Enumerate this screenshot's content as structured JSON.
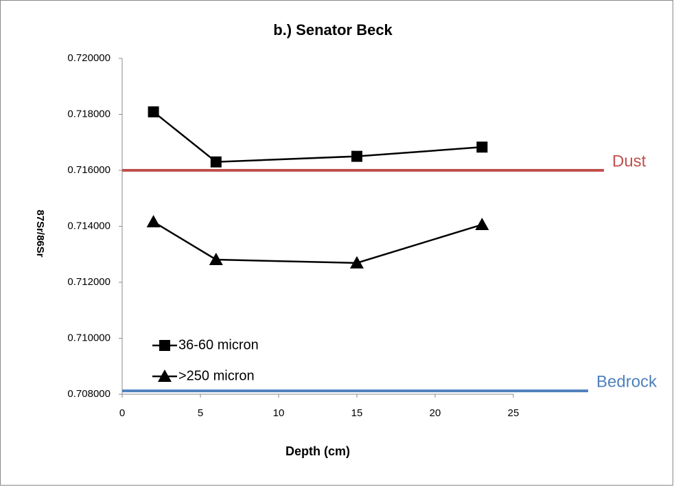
{
  "chart_data": {
    "type": "line",
    "title": "b.) Senator Beck",
    "x_label": "Depth (cm)",
    "y_label": "87Sr/86Sr",
    "xlim": [
      0,
      25
    ],
    "xticks": [
      0,
      5,
      10,
      15,
      20,
      25
    ],
    "ylim": [
      0.708,
      0.72
    ],
    "yticks": [
      {
        "value": 0.708,
        "label": "0.708000"
      },
      {
        "value": 0.71,
        "label": "0.710000"
      },
      {
        "value": 0.712,
        "label": "0.712000"
      },
      {
        "value": 0.714,
        "label": "0.714000"
      },
      {
        "value": 0.716,
        "label": "0.716000"
      },
      {
        "value": 0.718,
        "label": "0.718000"
      },
      {
        "value": 0.72,
        "label": "0.720000"
      }
    ],
    "legend": "lower left",
    "series": [
      {
        "name": "36-60 micron",
        "color": "#000000",
        "marker": "square",
        "x": [
          2,
          6,
          15,
          23
        ],
        "values": [
          0.71809,
          0.7163,
          0.7165,
          0.71683
        ]
      },
      {
        "name": ">250 micron",
        "color": "#000000",
        "marker": "triangle",
        "x": [
          2,
          6,
          15,
          23
        ],
        "values": [
          0.71416,
          0.71281,
          0.71269,
          0.71406
        ]
      }
    ],
    "reference_lines": [
      {
        "label": "Dust",
        "value": 0.716,
        "color": "#c0504d"
      },
      {
        "label": "Bedrock",
        "value": 0.70812,
        "color": "#4f81bd"
      }
    ]
  }
}
